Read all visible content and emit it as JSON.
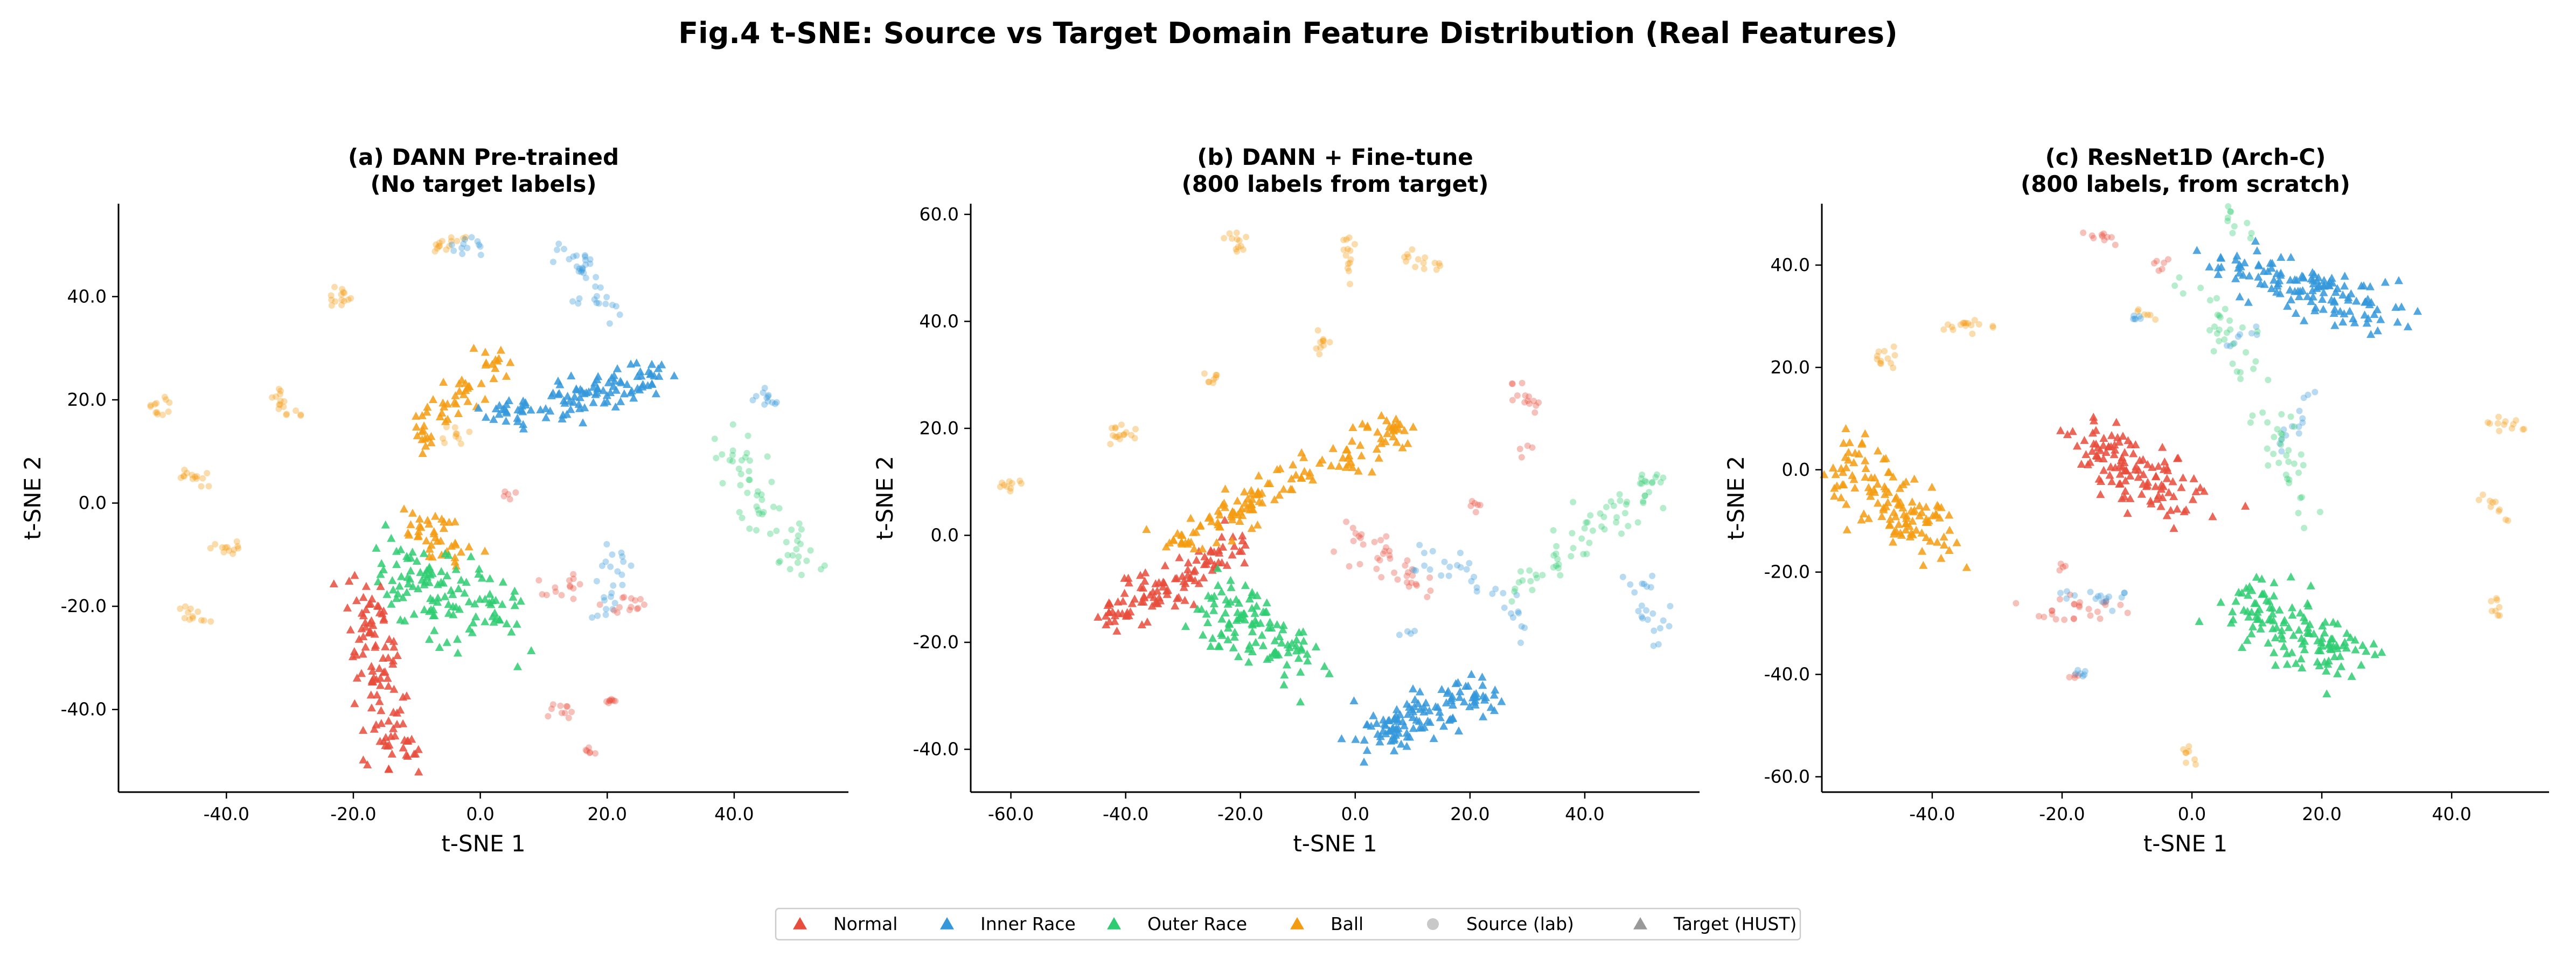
{
  "chart_data": {
    "suptitle": "Fig.4  t-SNE: Source vs Target Domain Feature Distribution (Real Features)",
    "type": "scatter",
    "classes": [
      {
        "key": "normal",
        "name": "Normal",
        "color": "#e74c3c"
      },
      {
        "key": "inner",
        "name": "Inner Race",
        "color": "#3498db"
      },
      {
        "key": "outer",
        "name": "Outer Race",
        "color": "#2ecc71"
      },
      {
        "key": "ball",
        "name": "Ball",
        "color": "#f39c12"
      }
    ],
    "legend": [
      {
        "label": "Normal",
        "marker": "triangle",
        "color": "#e74c3c"
      },
      {
        "label": "Inner Race",
        "marker": "triangle",
        "color": "#3498db"
      },
      {
        "label": "Outer Race",
        "marker": "triangle",
        "color": "#2ecc71"
      },
      {
        "label": "Ball",
        "marker": "triangle",
        "color": "#f39c12"
      },
      {
        "label": "Source (lab)",
        "marker": "circle",
        "color": "#c8c8c8"
      },
      {
        "label": "Target (HUST)",
        "marker": "triangle",
        "color": "#999999"
      }
    ],
    "legend_position": "bottom-center",
    "panels": [
      {
        "title_line1": "(a) DANN Pre-trained",
        "title_line2": "(No target labels)",
        "xlabel": "t-SNE 1",
        "ylabel": "t-SNE 2",
        "xlim": [
          -57,
          58
        ],
        "ylim": [
          -56,
          58
        ],
        "xticks": [
          -40,
          -20,
          0,
          20,
          40
        ],
        "yticks": [
          -40,
          -20,
          0,
          20,
          40
        ],
        "source_clusters": [
          {
            "cls": "ball",
            "x": [
              -52,
              -50
            ],
            "y": [
              19,
              19
            ],
            "n": 12,
            "spread": 1.2
          },
          {
            "cls": "ball",
            "x": [
              -23,
              -20
            ],
            "y": [
              41,
              38
            ],
            "n": 14,
            "spread": 1.2
          },
          {
            "cls": "ball",
            "x": [
              -33,
              -29
            ],
            "y": [
              22,
              17
            ],
            "n": 16,
            "spread": 0.8
          },
          {
            "cls": "ball",
            "x": [
              -47,
              -44
            ],
            "y": [
              7,
              4
            ],
            "n": 14,
            "spread": 1.0
          },
          {
            "cls": "ball",
            "x": [
              -42,
              -38
            ],
            "y": [
              -8,
              -9
            ],
            "n": 12,
            "spread": 1.0
          },
          {
            "cls": "ball",
            "x": [
              -47,
              -44
            ],
            "y": [
              -21,
              -23
            ],
            "n": 12,
            "spread": 1.0
          },
          {
            "cls": "ball",
            "x": [
              -8,
              -3
            ],
            "y": [
              50,
              50
            ],
            "n": 14,
            "spread": 1.0
          },
          {
            "cls": "ball",
            "x": [
              -6,
              -2
            ],
            "y": [
              14,
              13
            ],
            "n": 10,
            "spread": 1.0
          },
          {
            "cls": "inner",
            "x": [
              -4,
              0
            ],
            "y": [
              50,
              49
            ],
            "n": 12,
            "spread": 1.0
          },
          {
            "cls": "inner",
            "x": [
              12,
              18
            ],
            "y": [
              50,
              45
            ],
            "n": 22,
            "spread": 1.4
          },
          {
            "cls": "inner",
            "x": [
              16,
              22
            ],
            "y": [
              42,
              37
            ],
            "n": 16,
            "spread": 1.2
          },
          {
            "cls": "inner",
            "x": [
              44,
              46
            ],
            "y": [
              20,
              20
            ],
            "n": 12,
            "spread": 0.6
          },
          {
            "cls": "inner",
            "x": [
              22,
              20
            ],
            "y": [
              -9,
              -22
            ],
            "n": 24,
            "spread": 1.2
          },
          {
            "cls": "outer",
            "x": [
              38,
              52
            ],
            "y": [
              13,
              -14
            ],
            "n": 60,
            "spread": 1.8
          },
          {
            "cls": "normal",
            "x": [
              11,
              15
            ],
            "y": [
              -16,
              -16
            ],
            "n": 14,
            "spread": 1.0
          },
          {
            "cls": "normal",
            "x": [
              20,
              26
            ],
            "y": [
              -19,
              -20
            ],
            "n": 14,
            "spread": 1.0
          },
          {
            "cls": "normal",
            "x": [
              11,
              14
            ],
            "y": [
              -39,
              -40
            ],
            "n": 10,
            "spread": 1.0
          },
          {
            "cls": "normal",
            "x": [
              20,
              21
            ],
            "y": [
              -38,
              -38
            ],
            "n": 8,
            "spread": 0.6
          },
          {
            "cls": "normal",
            "x": [
              17,
              18
            ],
            "y": [
              -48,
              -48
            ],
            "n": 6,
            "spread": 0.6
          },
          {
            "cls": "normal",
            "x": [
              4,
              5
            ],
            "y": [
              2,
              0
            ],
            "n": 5,
            "spread": 0.6
          }
        ],
        "target_clusters": [
          {
            "cls": "ball",
            "x": [
              -10,
              2
            ],
            "y": [
              12,
              28
            ],
            "n": 55,
            "spread": 1.8
          },
          {
            "cls": "ball",
            "x": [
              -11,
              -3
            ],
            "y": [
              -2,
              -10
            ],
            "n": 40,
            "spread": 2.0
          },
          {
            "cls": "inner",
            "x": [
              3,
              27
            ],
            "y": [
              16,
              25
            ],
            "n": 110,
            "spread": 2.0
          },
          {
            "cls": "outer",
            "x": [
              -15,
              2
            ],
            "y": [
              -12,
              -22
            ],
            "n": 120,
            "spread": 3.5
          },
          {
            "cls": "normal",
            "x": [
              -19,
              -13
            ],
            "y": [
              -15,
              -50
            ],
            "n": 110,
            "spread": 2.0
          }
        ]
      },
      {
        "title_line1": "(b) DANN + Fine-tune",
        "title_line2": "(800 labels from target)",
        "xlabel": "t-SNE 1",
        "ylabel": "t-SNE 2",
        "xlim": [
          -67,
          60
        ],
        "ylim": [
          -48,
          62
        ],
        "xticks": [
          -60,
          -40,
          -20,
          0,
          20,
          40
        ],
        "yticks": [
          -40,
          -20,
          0,
          20,
          40,
          60
        ],
        "source_clusters": [
          {
            "cls": "ball",
            "x": [
              -62,
              -58
            ],
            "y": [
              9,
              10
            ],
            "n": 10,
            "spread": 0.8
          },
          {
            "cls": "ball",
            "x": [
              -42,
              -37
            ],
            "y": [
              19,
              19
            ],
            "n": 16,
            "spread": 1.0
          },
          {
            "cls": "ball",
            "x": [
              -26,
              -24
            ],
            "y": [
              29,
              29
            ],
            "n": 8,
            "spread": 0.6
          },
          {
            "cls": "ball",
            "x": [
              -22,
              -20
            ],
            "y": [
              56,
              54
            ],
            "n": 12,
            "spread": 1.0
          },
          {
            "cls": "ball",
            "x": [
              -1,
              -1
            ],
            "y": [
              56,
              48
            ],
            "n": 14,
            "spread": 0.6
          },
          {
            "cls": "ball",
            "x": [
              8,
              15
            ],
            "y": [
              52,
              50
            ],
            "n": 14,
            "spread": 1.0
          },
          {
            "cls": "ball",
            "x": [
              -7,
              -5
            ],
            "y": [
              37,
              34
            ],
            "n": 10,
            "spread": 1.0
          },
          {
            "cls": "normal",
            "x": [
              24,
              32
            ],
            "y": [
              30,
              24
            ],
            "n": 14,
            "spread": 1.0
          },
          {
            "cls": "normal",
            "x": [
              29,
              30
            ],
            "y": [
              16,
              16
            ],
            "n": 4,
            "spread": 0.5
          },
          {
            "cls": "normal",
            "x": [
              20,
              21
            ],
            "y": [
              6,
              5
            ],
            "n": 6,
            "spread": 0.6
          },
          {
            "cls": "normal",
            "x": [
              0,
              12
            ],
            "y": [
              0,
              -10
            ],
            "n": 40,
            "spread": 1.5
          },
          {
            "cls": "inner",
            "x": [
              10,
              22
            ],
            "y": [
              -4,
              -8
            ],
            "n": 20,
            "spread": 1.5
          },
          {
            "cls": "inner",
            "x": [
              25,
              30
            ],
            "y": [
              -10,
              -18
            ],
            "n": 12,
            "spread": 1.0
          },
          {
            "cls": "inner",
            "x": [
              48,
              54
            ],
            "y": [
              -8,
              -20
            ],
            "n": 22,
            "spread": 1.5
          },
          {
            "cls": "inner",
            "x": [
              8,
              10
            ],
            "y": [
              -18,
              -18
            ],
            "n": 4,
            "spread": 0.5
          },
          {
            "cls": "outer",
            "x": [
              28,
              52
            ],
            "y": [
              -10,
              10
            ],
            "n": 70,
            "spread": 1.8
          }
        ],
        "target_clusters": [
          {
            "cls": "normal",
            "x": [
              -43,
              -20
            ],
            "y": [
              -16,
              -2
            ],
            "n": 110,
            "spread": 2.0
          },
          {
            "cls": "ball",
            "x": [
              -32,
              9
            ],
            "y": [
              -2,
              21
            ],
            "n": 140,
            "spread": 1.8
          },
          {
            "cls": "outer",
            "x": [
              -25,
              -9
            ],
            "y": [
              -12,
              -24
            ],
            "n": 110,
            "spread": 3.0
          },
          {
            "cls": "inner",
            "x": [
              2,
              24
            ],
            "y": [
              -38,
              -28
            ],
            "n": 120,
            "spread": 2.2
          }
        ]
      },
      {
        "title_line1": "(c) ResNet1D (Arch-C)",
        "title_line2": "(800 labels, from scratch)",
        "xlabel": "t-SNE 1",
        "ylabel": "t-SNE 2",
        "xlim": [
          -57,
          55
        ],
        "ylim": [
          -63,
          52
        ],
        "xticks": [
          -40,
          -20,
          0,
          20,
          40
        ],
        "yticks": [
          -60,
          -40,
          -20,
          0,
          20,
          40
        ],
        "source_clusters": [
          {
            "cls": "ball",
            "x": [
              -48,
              -46
            ],
            "y": [
              24,
              20
            ],
            "n": 12,
            "spread": 0.8
          },
          {
            "cls": "ball",
            "x": [
              -38,
              -32
            ],
            "y": [
              27,
              29
            ],
            "n": 16,
            "spread": 1.0
          },
          {
            "cls": "ball",
            "x": [
              -8,
              -6
            ],
            "y": [
              31,
              30
            ],
            "n": 6,
            "spread": 0.5
          },
          {
            "cls": "ball",
            "x": [
              45,
              51
            ],
            "y": [
              10,
              8
            ],
            "n": 12,
            "spread": 0.8
          },
          {
            "cls": "ball",
            "x": [
              44,
              49
            ],
            "y": [
              -6,
              -9
            ],
            "n": 10,
            "spread": 0.8
          },
          {
            "cls": "ball",
            "x": [
              46,
              47
            ],
            "y": [
              -25,
              -28
            ],
            "n": 8,
            "spread": 0.6
          },
          {
            "cls": "ball",
            "x": [
              -1,
              1
            ],
            "y": [
              -55,
              -57
            ],
            "n": 8,
            "spread": 0.6
          },
          {
            "cls": "normal",
            "x": [
              -16,
              -12
            ],
            "y": [
              46,
              45
            ],
            "n": 10,
            "spread": 0.7
          },
          {
            "cls": "normal",
            "x": [
              -4,
              -5
            ],
            "y": [
              41,
              40
            ],
            "n": 6,
            "spread": 0.5
          },
          {
            "cls": "normal",
            "x": [
              -25,
              -10
            ],
            "y": [
              -28,
              -27
            ],
            "n": 26,
            "spread": 1.2
          },
          {
            "cls": "normal",
            "x": [
              -20,
              -20
            ],
            "y": [
              -19,
              -19
            ],
            "n": 4,
            "spread": 0.5
          },
          {
            "cls": "normal",
            "x": [
              -18,
              -17
            ],
            "y": [
              -40,
              -40
            ],
            "n": 4,
            "spread": 0.5
          },
          {
            "cls": "inner",
            "x": [
              -18,
              -16
            ],
            "y": [
              -39,
              -40
            ],
            "n": 6,
            "spread": 0.5
          },
          {
            "cls": "inner",
            "x": [
              -8,
              -9
            ],
            "y": [
              30,
              29
            ],
            "n": 6,
            "spread": 0.5
          },
          {
            "cls": "inner",
            "x": [
              -20,
              -10
            ],
            "y": [
              -24,
              -26
            ],
            "n": 16,
            "spread": 1.0
          },
          {
            "cls": "inner",
            "x": [
              14,
              18
            ],
            "y": [
              5,
              14
            ],
            "n": 14,
            "spread": 1.0
          },
          {
            "cls": "inner",
            "x": [
              6,
              10
            ],
            "y": [
              25,
              27
            ],
            "n": 8,
            "spread": 0.8
          },
          {
            "cls": "outer",
            "x": [
              4,
              10
            ],
            "y": [
              51,
              44
            ],
            "n": 10,
            "spread": 1.0
          },
          {
            "cls": "outer",
            "x": [
              0,
              8
            ],
            "y": [
              36,
              20
            ],
            "n": 30,
            "spread": 1.5
          },
          {
            "cls": "outer",
            "x": [
              12,
              18
            ],
            "y": [
              14,
              -12
            ],
            "n": 34,
            "spread": 1.5
          }
        ],
        "target_clusters": [
          {
            "cls": "ball",
            "x": [
              -54,
              -40
            ],
            "y": [
              2,
              -14
            ],
            "n": 130,
            "spread": 3.2
          },
          {
            "cls": "normal",
            "x": [
              -17,
              -1
            ],
            "y": [
              6,
              -6
            ],
            "n": 120,
            "spread": 3.0
          },
          {
            "cls": "inner",
            "x": [
              6,
              31
            ],
            "y": [
              40,
              30
            ],
            "n": 130,
            "spread": 2.6
          },
          {
            "cls": "outer",
            "x": [
              8,
              24
            ],
            "y": [
              -25,
              -37
            ],
            "n": 130,
            "spread": 3.0
          }
        ]
      }
    ]
  }
}
